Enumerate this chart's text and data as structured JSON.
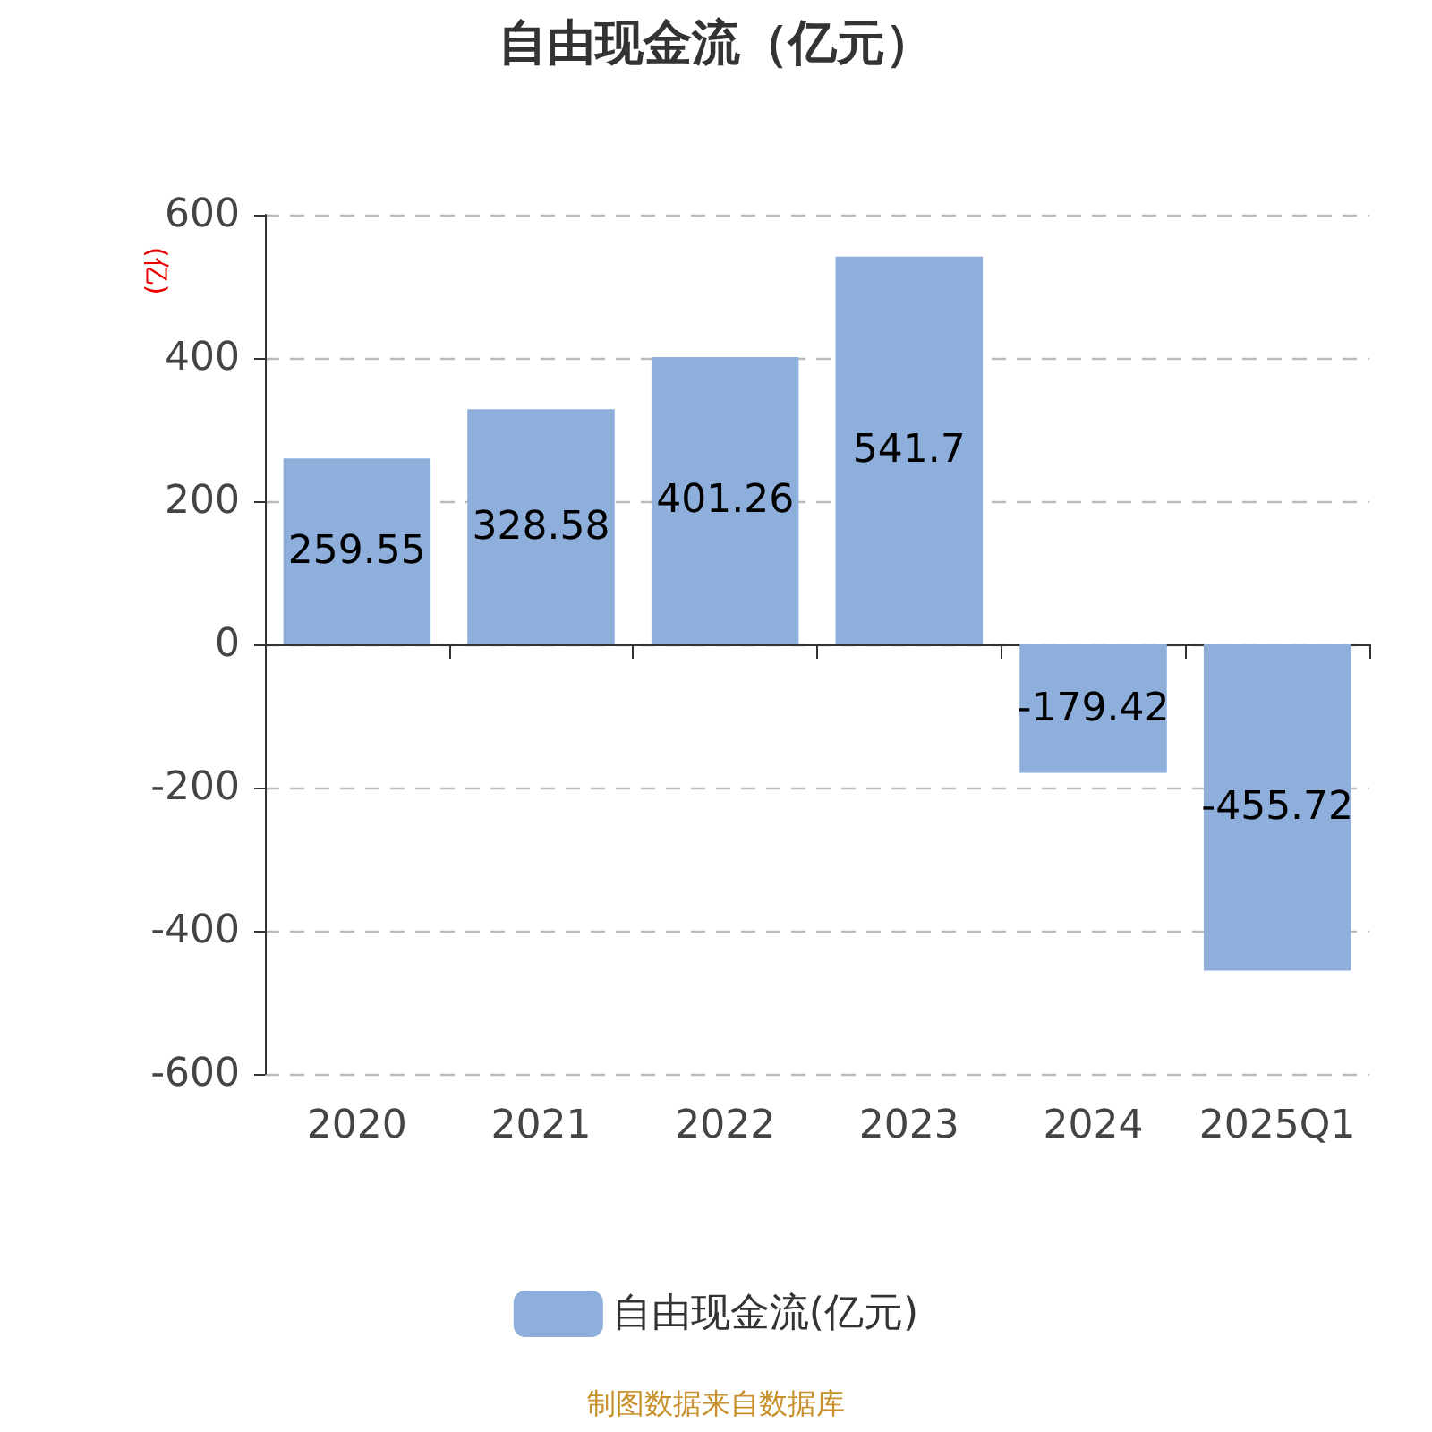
{
  "chart_data": {
    "type": "bar",
    "title": "自由现金流（亿元）",
    "ylabel": "(亿)",
    "categories": [
      "2020",
      "2021",
      "2022",
      "2023",
      "2024",
      "2025Q1"
    ],
    "series": [
      {
        "name": "自由现金流(亿元)",
        "color": "#8eafdb",
        "values": [
          259.55,
          328.58,
          401.26,
          541.7,
          -179.42,
          -455.72
        ]
      }
    ],
    "ylim": [
      -600,
      600
    ],
    "yticks": [
      -600,
      -400,
      -200,
      0,
      200,
      400,
      600
    ],
    "grid": "y",
    "legend": "bottom",
    "data_labels": true,
    "annotations": [
      "制图数据来自数据库"
    ]
  }
}
